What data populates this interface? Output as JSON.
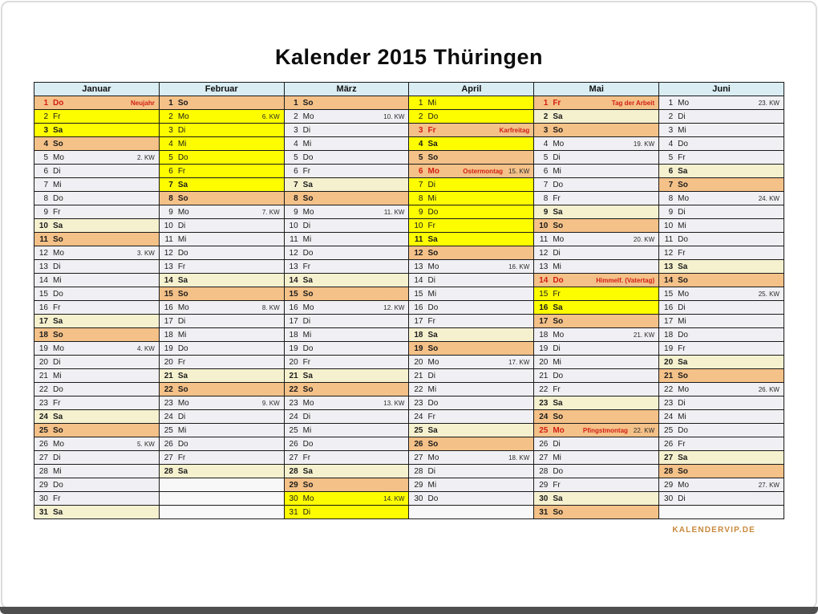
{
  "page": {
    "title": "Kalender 2015 Thüringen",
    "footer": "KALENDERVIP.DE"
  },
  "colors": {
    "header_bg": "#d9edf3",
    "weekday_bg": "#f0f0f4",
    "saturday_bg": "#f5f1cf",
    "sunday_bg": "#f4c188",
    "holiday_bg": "#f4c188",
    "school_holiday_bg": "#fdfd00",
    "holiday_text": "#d21e14",
    "footer_text": "#c8883b",
    "border": "#1a1a1a"
  },
  "months": [
    {
      "name": "Januar",
      "days": [
        {
          "d": 1,
          "w": "Do",
          "t": "hol",
          "h": "Neujahr"
        },
        {
          "d": 2,
          "w": "Fr",
          "t": "fer"
        },
        {
          "d": 3,
          "w": "Sa",
          "t": "fer"
        },
        {
          "d": 4,
          "w": "So",
          "t": "so"
        },
        {
          "d": 5,
          "w": "Mo",
          "t": "n",
          "k": "2. KW"
        },
        {
          "d": 6,
          "w": "Di",
          "t": "n"
        },
        {
          "d": 7,
          "w": "Mi",
          "t": "n"
        },
        {
          "d": 8,
          "w": "Do",
          "t": "n"
        },
        {
          "d": 9,
          "w": "Fr",
          "t": "n"
        },
        {
          "d": 10,
          "w": "Sa",
          "t": "sa"
        },
        {
          "d": 11,
          "w": "So",
          "t": "so"
        },
        {
          "d": 12,
          "w": "Mo",
          "t": "n",
          "k": "3. KW"
        },
        {
          "d": 13,
          "w": "Di",
          "t": "n"
        },
        {
          "d": 14,
          "w": "Mi",
          "t": "n"
        },
        {
          "d": 15,
          "w": "Do",
          "t": "n"
        },
        {
          "d": 16,
          "w": "Fr",
          "t": "n"
        },
        {
          "d": 17,
          "w": "Sa",
          "t": "sa"
        },
        {
          "d": 18,
          "w": "So",
          "t": "so"
        },
        {
          "d": 19,
          "w": "Mo",
          "t": "n",
          "k": "4. KW"
        },
        {
          "d": 20,
          "w": "Di",
          "t": "n"
        },
        {
          "d": 21,
          "w": "Mi",
          "t": "n"
        },
        {
          "d": 22,
          "w": "Do",
          "t": "n"
        },
        {
          "d": 23,
          "w": "Fr",
          "t": "n"
        },
        {
          "d": 24,
          "w": "Sa",
          "t": "sa"
        },
        {
          "d": 25,
          "w": "So",
          "t": "so"
        },
        {
          "d": 26,
          "w": "Mo",
          "t": "n",
          "k": "5. KW"
        },
        {
          "d": 27,
          "w": "Di",
          "t": "n"
        },
        {
          "d": 28,
          "w": "Mi",
          "t": "n"
        },
        {
          "d": 29,
          "w": "Do",
          "t": "n"
        },
        {
          "d": 30,
          "w": "Fr",
          "t": "n"
        },
        {
          "d": 31,
          "w": "Sa",
          "t": "sa"
        }
      ]
    },
    {
      "name": "Februar",
      "days": [
        {
          "d": 1,
          "w": "So",
          "t": "so"
        },
        {
          "d": 2,
          "w": "Mo",
          "t": "fer",
          "k": "6. KW"
        },
        {
          "d": 3,
          "w": "Di",
          "t": "fer"
        },
        {
          "d": 4,
          "w": "Mi",
          "t": "fer"
        },
        {
          "d": 5,
          "w": "Do",
          "t": "fer"
        },
        {
          "d": 6,
          "w": "Fr",
          "t": "fer"
        },
        {
          "d": 7,
          "w": "Sa",
          "t": "fer"
        },
        {
          "d": 8,
          "w": "So",
          "t": "so"
        },
        {
          "d": 9,
          "w": "Mo",
          "t": "n",
          "k": "7. KW"
        },
        {
          "d": 10,
          "w": "Di",
          "t": "n"
        },
        {
          "d": 11,
          "w": "Mi",
          "t": "n"
        },
        {
          "d": 12,
          "w": "Do",
          "t": "n"
        },
        {
          "d": 13,
          "w": "Fr",
          "t": "n"
        },
        {
          "d": 14,
          "w": "Sa",
          "t": "sa"
        },
        {
          "d": 15,
          "w": "So",
          "t": "so"
        },
        {
          "d": 16,
          "w": "Mo",
          "t": "n",
          "k": "8. KW"
        },
        {
          "d": 17,
          "w": "Di",
          "t": "n"
        },
        {
          "d": 18,
          "w": "Mi",
          "t": "n"
        },
        {
          "d": 19,
          "w": "Do",
          "t": "n"
        },
        {
          "d": 20,
          "w": "Fr",
          "t": "n"
        },
        {
          "d": 21,
          "w": "Sa",
          "t": "sa"
        },
        {
          "d": 22,
          "w": "So",
          "t": "so"
        },
        {
          "d": 23,
          "w": "Mo",
          "t": "n",
          "k": "9. KW"
        },
        {
          "d": 24,
          "w": "Di",
          "t": "n"
        },
        {
          "d": 25,
          "w": "Mi",
          "t": "n"
        },
        {
          "d": 26,
          "w": "Do",
          "t": "n"
        },
        {
          "d": 27,
          "w": "Fr",
          "t": "n"
        },
        {
          "d": 28,
          "w": "Sa",
          "t": "sa"
        },
        null,
        null,
        null
      ]
    },
    {
      "name": "März",
      "days": [
        {
          "d": 1,
          "w": "So",
          "t": "so"
        },
        {
          "d": 2,
          "w": "Mo",
          "t": "n",
          "k": "10. KW"
        },
        {
          "d": 3,
          "w": "Di",
          "t": "n"
        },
        {
          "d": 4,
          "w": "Mi",
          "t": "n"
        },
        {
          "d": 5,
          "w": "Do",
          "t": "n"
        },
        {
          "d": 6,
          "w": "Fr",
          "t": "n"
        },
        {
          "d": 7,
          "w": "Sa",
          "t": "sa"
        },
        {
          "d": 8,
          "w": "So",
          "t": "so"
        },
        {
          "d": 9,
          "w": "Mo",
          "t": "n",
          "k": "11. KW"
        },
        {
          "d": 10,
          "w": "Di",
          "t": "n"
        },
        {
          "d": 11,
          "w": "Mi",
          "t": "n"
        },
        {
          "d": 12,
          "w": "Do",
          "t": "n"
        },
        {
          "d": 13,
          "w": "Fr",
          "t": "n"
        },
        {
          "d": 14,
          "w": "Sa",
          "t": "sa"
        },
        {
          "d": 15,
          "w": "So",
          "t": "so"
        },
        {
          "d": 16,
          "w": "Mo",
          "t": "n",
          "k": "12. KW"
        },
        {
          "d": 17,
          "w": "Di",
          "t": "n"
        },
        {
          "d": 18,
          "w": "Mi",
          "t": "n"
        },
        {
          "d": 19,
          "w": "Do",
          "t": "n"
        },
        {
          "d": 20,
          "w": "Fr",
          "t": "n"
        },
        {
          "d": 21,
          "w": "Sa",
          "t": "sa"
        },
        {
          "d": 22,
          "w": "So",
          "t": "so"
        },
        {
          "d": 23,
          "w": "Mo",
          "t": "n",
          "k": "13. KW"
        },
        {
          "d": 24,
          "w": "Di",
          "t": "n"
        },
        {
          "d": 25,
          "w": "Mi",
          "t": "n"
        },
        {
          "d": 26,
          "w": "Do",
          "t": "n"
        },
        {
          "d": 27,
          "w": "Fr",
          "t": "n"
        },
        {
          "d": 28,
          "w": "Sa",
          "t": "sa"
        },
        {
          "d": 29,
          "w": "So",
          "t": "so"
        },
        {
          "d": 30,
          "w": "Mo",
          "t": "fer",
          "k": "14. KW"
        },
        {
          "d": 31,
          "w": "Di",
          "t": "fer"
        }
      ]
    },
    {
      "name": "April",
      "days": [
        {
          "d": 1,
          "w": "Mi",
          "t": "fer"
        },
        {
          "d": 2,
          "w": "Do",
          "t": "fer"
        },
        {
          "d": 3,
          "w": "Fr",
          "t": "hol",
          "h": "Karfreitag"
        },
        {
          "d": 4,
          "w": "Sa",
          "t": "fer"
        },
        {
          "d": 5,
          "w": "So",
          "t": "so"
        },
        {
          "d": 6,
          "w": "Mo",
          "t": "hol",
          "h": "Ostermontag",
          "k": "15. KW"
        },
        {
          "d": 7,
          "w": "Di",
          "t": "fer"
        },
        {
          "d": 8,
          "w": "Mi",
          "t": "fer"
        },
        {
          "d": 9,
          "w": "Do",
          "t": "fer"
        },
        {
          "d": 10,
          "w": "Fr",
          "t": "fer"
        },
        {
          "d": 11,
          "w": "Sa",
          "t": "fer"
        },
        {
          "d": 12,
          "w": "So",
          "t": "so"
        },
        {
          "d": 13,
          "w": "Mo",
          "t": "n",
          "k": "16. KW"
        },
        {
          "d": 14,
          "w": "Di",
          "t": "n"
        },
        {
          "d": 15,
          "w": "Mi",
          "t": "n"
        },
        {
          "d": 16,
          "w": "Do",
          "t": "n"
        },
        {
          "d": 17,
          "w": "Fr",
          "t": "n"
        },
        {
          "d": 18,
          "w": "Sa",
          "t": "sa"
        },
        {
          "d": 19,
          "w": "So",
          "t": "so"
        },
        {
          "d": 20,
          "w": "Mo",
          "t": "n",
          "k": "17. KW"
        },
        {
          "d": 21,
          "w": "Di",
          "t": "n"
        },
        {
          "d": 22,
          "w": "Mi",
          "t": "n"
        },
        {
          "d": 23,
          "w": "Do",
          "t": "n"
        },
        {
          "d": 24,
          "w": "Fr",
          "t": "n"
        },
        {
          "d": 25,
          "w": "Sa",
          "t": "sa"
        },
        {
          "d": 26,
          "w": "So",
          "t": "so"
        },
        {
          "d": 27,
          "w": "Mo",
          "t": "n",
          "k": "18. KW"
        },
        {
          "d": 28,
          "w": "Di",
          "t": "n"
        },
        {
          "d": 29,
          "w": "Mi",
          "t": "n"
        },
        {
          "d": 30,
          "w": "Do",
          "t": "n"
        },
        null
      ]
    },
    {
      "name": "Mai",
      "days": [
        {
          "d": 1,
          "w": "Fr",
          "t": "hol",
          "h": "Tag der Arbeit"
        },
        {
          "d": 2,
          "w": "Sa",
          "t": "sa"
        },
        {
          "d": 3,
          "w": "So",
          "t": "so"
        },
        {
          "d": 4,
          "w": "Mo",
          "t": "n",
          "k": "19. KW"
        },
        {
          "d": 5,
          "w": "Di",
          "t": "n"
        },
        {
          "d": 6,
          "w": "Mi",
          "t": "n"
        },
        {
          "d": 7,
          "w": "Do",
          "t": "n"
        },
        {
          "d": 8,
          "w": "Fr",
          "t": "n"
        },
        {
          "d": 9,
          "w": "Sa",
          "t": "sa"
        },
        {
          "d": 10,
          "w": "So",
          "t": "so"
        },
        {
          "d": 11,
          "w": "Mo",
          "t": "n",
          "k": "20. KW"
        },
        {
          "d": 12,
          "w": "Di",
          "t": "n"
        },
        {
          "d": 13,
          "w": "Mi",
          "t": "n"
        },
        {
          "d": 14,
          "w": "Do",
          "t": "hol",
          "h": "Himmelf. (Vatertag)"
        },
        {
          "d": 15,
          "w": "Fr",
          "t": "fer"
        },
        {
          "d": 16,
          "w": "Sa",
          "t": "fer"
        },
        {
          "d": 17,
          "w": "So",
          "t": "so"
        },
        {
          "d": 18,
          "w": "Mo",
          "t": "n",
          "k": "21. KW"
        },
        {
          "d": 19,
          "w": "Di",
          "t": "n"
        },
        {
          "d": 20,
          "w": "Mi",
          "t": "n"
        },
        {
          "d": 21,
          "w": "Do",
          "t": "n"
        },
        {
          "d": 22,
          "w": "Fr",
          "t": "n"
        },
        {
          "d": 23,
          "w": "Sa",
          "t": "sa"
        },
        {
          "d": 24,
          "w": "So",
          "t": "so"
        },
        {
          "d": 25,
          "w": "Mo",
          "t": "hol",
          "h": "Pfingstmontag",
          "k": "22. KW"
        },
        {
          "d": 26,
          "w": "Di",
          "t": "n"
        },
        {
          "d": 27,
          "w": "Mi",
          "t": "n"
        },
        {
          "d": 28,
          "w": "Do",
          "t": "n"
        },
        {
          "d": 29,
          "w": "Fr",
          "t": "n"
        },
        {
          "d": 30,
          "w": "Sa",
          "t": "sa"
        },
        {
          "d": 31,
          "w": "So",
          "t": "so"
        }
      ]
    },
    {
      "name": "Juni",
      "days": [
        {
          "d": 1,
          "w": "Mo",
          "t": "n",
          "k": "23. KW"
        },
        {
          "d": 2,
          "w": "Di",
          "t": "n"
        },
        {
          "d": 3,
          "w": "Mi",
          "t": "n"
        },
        {
          "d": 4,
          "w": "Do",
          "t": "n"
        },
        {
          "d": 5,
          "w": "Fr",
          "t": "n"
        },
        {
          "d": 6,
          "w": "Sa",
          "t": "sa"
        },
        {
          "d": 7,
          "w": "So",
          "t": "so"
        },
        {
          "d": 8,
          "w": "Mo",
          "t": "n",
          "k": "24. KW"
        },
        {
          "d": 9,
          "w": "Di",
          "t": "n"
        },
        {
          "d": 10,
          "w": "Mi",
          "t": "n"
        },
        {
          "d": 11,
          "w": "Do",
          "t": "n"
        },
        {
          "d": 12,
          "w": "Fr",
          "t": "n"
        },
        {
          "d": 13,
          "w": "Sa",
          "t": "sa"
        },
        {
          "d": 14,
          "w": "So",
          "t": "so"
        },
        {
          "d": 15,
          "w": "Mo",
          "t": "n",
          "k": "25. KW"
        },
        {
          "d": 16,
          "w": "Di",
          "t": "n"
        },
        {
          "d": 17,
          "w": "Mi",
          "t": "n"
        },
        {
          "d": 18,
          "w": "Do",
          "t": "n"
        },
        {
          "d": 19,
          "w": "Fr",
          "t": "n"
        },
        {
          "d": 20,
          "w": "Sa",
          "t": "sa"
        },
        {
          "d": 21,
          "w": "So",
          "t": "so"
        },
        {
          "d": 22,
          "w": "Mo",
          "t": "n",
          "k": "26. KW"
        },
        {
          "d": 23,
          "w": "Di",
          "t": "n"
        },
        {
          "d": 24,
          "w": "Mi",
          "t": "n"
        },
        {
          "d": 25,
          "w": "Do",
          "t": "n"
        },
        {
          "d": 26,
          "w": "Fr",
          "t": "n"
        },
        {
          "d": 27,
          "w": "Sa",
          "t": "sa"
        },
        {
          "d": 28,
          "w": "So",
          "t": "so"
        },
        {
          "d": 29,
          "w": "Mo",
          "t": "n",
          "k": "27. KW"
        },
        {
          "d": 30,
          "w": "Di",
          "t": "n"
        },
        null
      ]
    }
  ]
}
